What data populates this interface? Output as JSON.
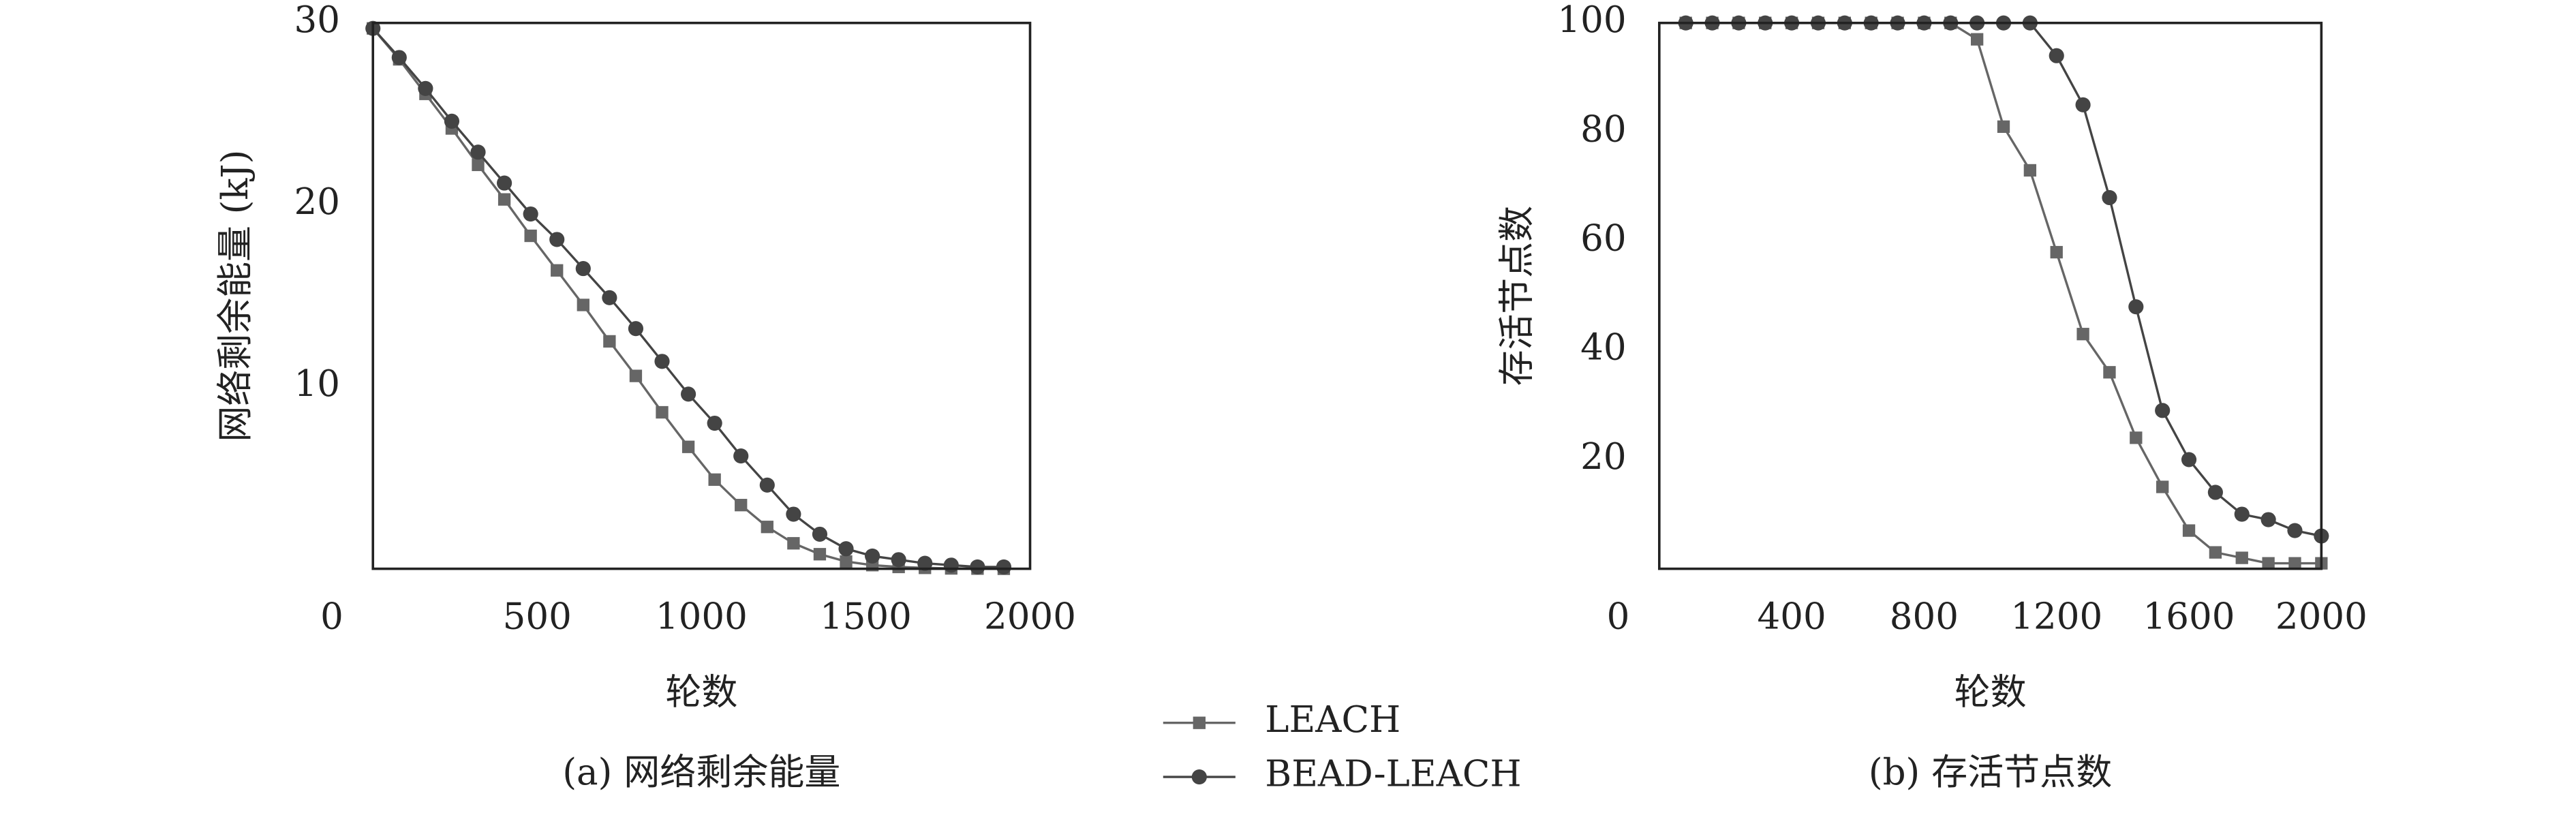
{
  "chart_data": [
    {
      "type": "line",
      "caption": "(a) 网络剩余能量",
      "xlabel": "轮数",
      "ylabel": "网络剩余能量 (kJ)",
      "x": [
        0,
        80,
        160,
        240,
        320,
        400,
        480,
        560,
        640,
        720,
        800,
        880,
        960,
        1040,
        1120,
        1200,
        1280,
        1360,
        1440,
        1520,
        1600,
        1680,
        1760,
        1840,
        1920
      ],
      "series": [
        {
          "name": "LEACH",
          "color": "#666666",
          "marker": "square",
          "values": [
            29.7,
            28.0,
            26.1,
            24.2,
            22.2,
            20.3,
            18.3,
            16.4,
            14.5,
            12.5,
            10.6,
            8.6,
            6.7,
            4.9,
            3.5,
            2.3,
            1.4,
            0.8,
            0.4,
            0.2,
            0.1,
            0.05,
            0.02,
            0.01,
            0
          ]
        },
        {
          "name": "BEAD-LEACH",
          "color": "#444444",
          "marker": "circle",
          "values": [
            29.7,
            28.1,
            26.4,
            24.6,
            22.9,
            21.2,
            19.5,
            18.1,
            16.5,
            14.9,
            13.2,
            11.4,
            9.6,
            8.0,
            6.2,
            4.6,
            3.0,
            1.9,
            1.1,
            0.7,
            0.5,
            0.3,
            0.2,
            0.1,
            0.1
          ]
        }
      ],
      "xlim": [
        0,
        2000
      ],
      "xticks": [
        0,
        500,
        1000,
        1500,
        2000
      ],
      "ylim": [
        0,
        30
      ],
      "yticks": [
        10,
        20,
        30
      ],
      "grid": false
    },
    {
      "type": "line",
      "caption": "(b) 存活节点数",
      "xlabel": "轮数",
      "ylabel": "存活节点数",
      "x": [
        80,
        160,
        240,
        320,
        400,
        480,
        560,
        640,
        720,
        800,
        880,
        960,
        1040,
        1120,
        1200,
        1280,
        1360,
        1440,
        1520,
        1600,
        1680,
        1760,
        1840,
        1920,
        2000
      ],
      "series": [
        {
          "name": "LEACH",
          "color": "#666666",
          "marker": "square",
          "values": [
            100,
            100,
            100,
            100,
            100,
            100,
            100,
            100,
            100,
            100,
            100,
            97,
            81,
            73,
            58,
            43,
            36,
            24,
            15,
            7,
            3,
            2,
            1,
            1,
            1
          ]
        },
        {
          "name": "BEAD-LEACH",
          "color": "#444444",
          "marker": "circle",
          "values": [
            100,
            100,
            100,
            100,
            100,
            100,
            100,
            100,
            100,
            100,
            100,
            100,
            100,
            100,
            94,
            85,
            68,
            48,
            29,
            20,
            14,
            10,
            9,
            7,
            6
          ]
        }
      ],
      "xlim": [
        0,
        2000
      ],
      "xticks": [
        0,
        400,
        800,
        1200,
        1600,
        2000
      ],
      "ylim": [
        0,
        100
      ],
      "yticks": [
        20,
        40,
        60,
        80,
        100
      ],
      "grid": false
    }
  ]
}
